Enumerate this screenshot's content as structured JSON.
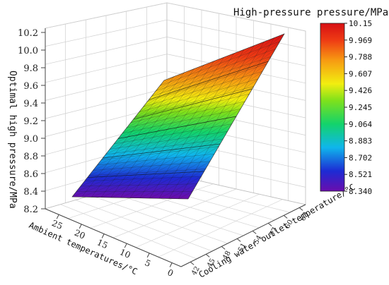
{
  "chart_data": {
    "type": "surface3d",
    "title": "High-pressure pressure/MPa",
    "zlabel": "Optimal high pressure/MPa",
    "xlabel": "Ambient temperatures/°C",
    "ylabel": "Cooling water outlet temperature/°C",
    "z_ticks": [
      "10.2",
      "10.0",
      "9.8",
      "9.6",
      "9.4",
      "9.2",
      "9.0",
      "8.8",
      "8.6",
      "8.4",
      "8.2"
    ],
    "x_ticks": [
      "25",
      "20",
      "15",
      "10",
      "5",
      "0"
    ],
    "y_ticks": [
      "63",
      "60",
      "57",
      "54",
      "51",
      "48",
      "45",
      "42"
    ],
    "zlim": [
      8.2,
      10.2
    ],
    "colorbar": {
      "min": 8.34,
      "max": 10.15,
      "labels": [
        "10.15",
        "9.969",
        "9.788",
        "9.607",
        "9.426",
        "9.245",
        "9.064",
        "8.883",
        "8.702",
        "8.521",
        "8.340"
      ]
    },
    "surface_corners": {
      "low_ambient_low_outlet": 8.34,
      "high_ambient_low_outlet": 8.34,
      "low_ambient_high_outlet": 9.6,
      "high_ambient_high_outlet": 10.15
    },
    "grid": true
  }
}
